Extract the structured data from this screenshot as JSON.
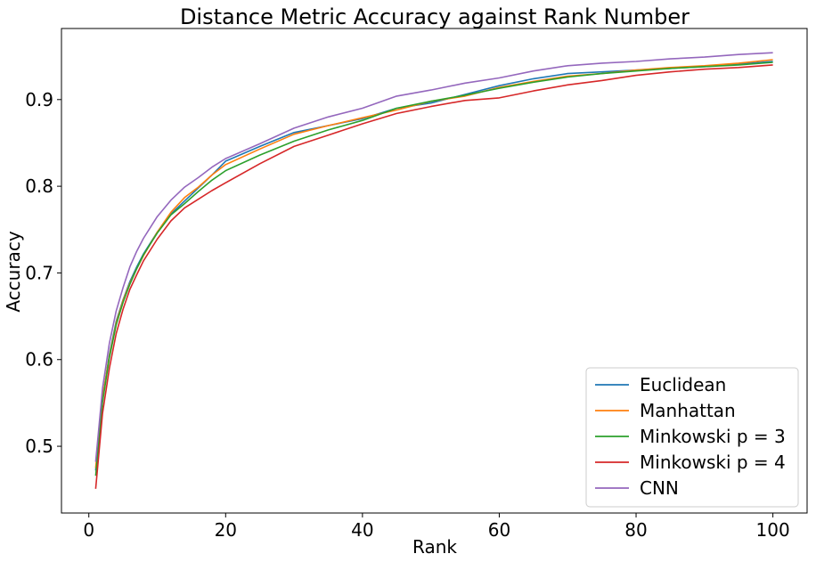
{
  "chart_data": {
    "type": "line",
    "title": "Distance Metric Accuracy against Rank Number",
    "xlabel": "Rank",
    "ylabel": "Accuracy",
    "xlim": [
      -4,
      105
    ],
    "ylim": [
      0.423,
      0.982
    ],
    "xticks": [
      0,
      20,
      40,
      60,
      80,
      100
    ],
    "xtick_labels": [
      "0",
      "20",
      "40",
      "60",
      "80",
      "100"
    ],
    "yticks": [
      0.5,
      0.6,
      0.7,
      0.8,
      0.9
    ],
    "ytick_labels": [
      "0.5",
      "0.6",
      "0.7",
      "0.8",
      "0.9"
    ],
    "grid": false,
    "legend_position": "lower-right",
    "x": [
      1,
      2,
      3,
      4,
      5,
      6,
      7,
      8,
      10,
      12,
      14,
      16,
      18,
      20,
      25,
      30,
      35,
      40,
      45,
      50,
      55,
      60,
      65,
      70,
      75,
      80,
      85,
      90,
      95,
      100
    ],
    "series": [
      {
        "name": "Euclidean",
        "color": "#1f77b4",
        "values": [
          0.472,
          0.555,
          0.606,
          0.644,
          0.669,
          0.69,
          0.707,
          0.722,
          0.747,
          0.768,
          0.783,
          0.798,
          0.813,
          0.829,
          0.846,
          0.862,
          0.87,
          0.878,
          0.89,
          0.896,
          0.906,
          0.916,
          0.924,
          0.93,
          0.932,
          0.934,
          0.936,
          0.938,
          0.941,
          0.944
        ]
      },
      {
        "name": "Manhattan",
        "color": "#ff7f0e",
        "values": [
          0.475,
          0.556,
          0.604,
          0.642,
          0.668,
          0.688,
          0.705,
          0.72,
          0.747,
          0.77,
          0.787,
          0.799,
          0.813,
          0.825,
          0.843,
          0.86,
          0.87,
          0.879,
          0.888,
          0.898,
          0.904,
          0.914,
          0.921,
          0.927,
          0.93,
          0.934,
          0.937,
          0.939,
          0.942,
          0.946
        ]
      },
      {
        "name": "Minkowski p = 3",
        "color": "#2ca02c",
        "values": [
          0.466,
          0.551,
          0.602,
          0.64,
          0.666,
          0.687,
          0.705,
          0.721,
          0.746,
          0.767,
          0.78,
          0.794,
          0.807,
          0.818,
          0.836,
          0.852,
          0.865,
          0.876,
          0.89,
          0.898,
          0.905,
          0.913,
          0.92,
          0.926,
          0.93,
          0.933,
          0.936,
          0.938,
          0.94,
          0.943
        ]
      },
      {
        "name": "Minkowski p = 4",
        "color": "#d62728",
        "values": [
          0.451,
          0.538,
          0.59,
          0.63,
          0.658,
          0.681,
          0.698,
          0.714,
          0.739,
          0.76,
          0.775,
          0.785,
          0.795,
          0.804,
          0.826,
          0.846,
          0.859,
          0.872,
          0.884,
          0.892,
          0.899,
          0.902,
          0.91,
          0.917,
          0.922,
          0.928,
          0.932,
          0.935,
          0.937,
          0.94
        ]
      },
      {
        "name": "CNN",
        "color": "#9467bd",
        "values": [
          0.482,
          0.567,
          0.619,
          0.656,
          0.683,
          0.707,
          0.725,
          0.74,
          0.765,
          0.784,
          0.799,
          0.81,
          0.822,
          0.832,
          0.849,
          0.867,
          0.88,
          0.89,
          0.904,
          0.911,
          0.919,
          0.925,
          0.933,
          0.939,
          0.942,
          0.944,
          0.947,
          0.949,
          0.952,
          0.954
        ]
      }
    ]
  }
}
